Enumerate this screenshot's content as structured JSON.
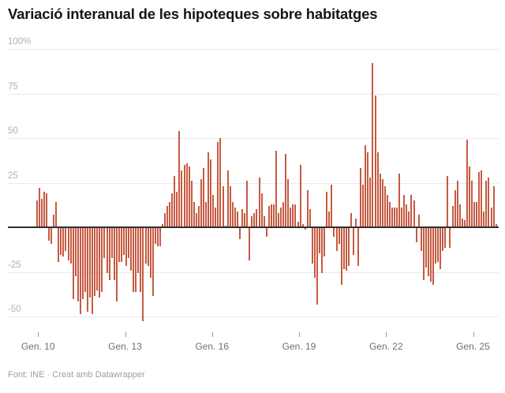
{
  "title": "Variació interanual de les hipoteques sobre habitatges",
  "footer": {
    "text": "Font: INE · Creat amb Datawrapper"
  },
  "chart_data": {
    "type": "bar",
    "title": "Variació interanual de les hipoteques sobre habitatges",
    "unit": "percent",
    "frequency": "monthly",
    "x_start_label": "Gen. 10",
    "grid": true,
    "bar_color": "#c65a41",
    "zero_line_color": "#2f2f2f",
    "grid_color": "#e9e9e9",
    "ylim": [
      -55,
      100
    ],
    "y_ticks": [
      {
        "value": 100,
        "label": "100%"
      },
      {
        "value": 75,
        "label": "75"
      },
      {
        "value": 50,
        "label": "50"
      },
      {
        "value": 25,
        "label": "25"
      },
      {
        "value": -25,
        "label": "-25"
      },
      {
        "value": -50,
        "label": "-50"
      }
    ],
    "x_ticks": [
      {
        "index": 0,
        "label": "Gen. 10"
      },
      {
        "index": 36,
        "label": "Gen. 13"
      },
      {
        "index": 72,
        "label": "Gen. 16"
      },
      {
        "index": 108,
        "label": "Gen. 19"
      },
      {
        "index": 144,
        "label": "Gen. 22"
      },
      {
        "index": 180,
        "label": "Gen. 25"
      }
    ],
    "values": [
      15,
      22,
      16,
      20,
      19,
      -7,
      -9,
      7,
      14,
      -19,
      -15,
      -16,
      -13,
      -18,
      -20,
      -40,
      -27,
      -41,
      -48,
      -40,
      -36,
      -47,
      -39,
      -48,
      -38,
      -35,
      -39,
      -36,
      -17,
      -25,
      -29,
      -17,
      -29,
      -41,
      -19,
      -19,
      -15,
      -21,
      -17,
      -24,
      -36,
      -36,
      -25,
      -36,
      -52,
      -20,
      -21,
      -28,
      -38,
      -9,
      -10,
      -10,
      2,
      8,
      12,
      14,
      19,
      29,
      20,
      54,
      32,
      35,
      36,
      34,
      26,
      14,
      8,
      12,
      27,
      33,
      14,
      42,
      38,
      18,
      11,
      48,
      50,
      23,
      1,
      32,
      23,
      14,
      11,
      9,
      -6,
      10,
      8,
      26,
      -18,
      6,
      8,
      10,
      28,
      19,
      6,
      -5,
      12,
      13,
      13,
      43,
      8,
      11,
      14,
      41,
      27,
      11,
      13,
      13,
      3,
      35,
      2,
      -1,
      21,
      10,
      -20,
      -28,
      -43,
      -14,
      -25,
      -16,
      20,
      9,
      24,
      -5,
      -13,
      -9,
      -32,
      -23,
      -24,
      -21,
      8,
      -15,
      5,
      -21,
      33,
      24,
      46,
      42,
      28,
      92,
      74,
      42,
      30,
      27,
      23,
      18,
      14,
      11,
      11,
      11,
      30,
      11,
      18,
      13,
      9,
      18,
      15,
      -8,
      7,
      -13,
      -29,
      -22,
      -27,
      -30,
      -32,
      -20,
      -19,
      -23,
      -13,
      -11,
      29,
      -11,
      12,
      21,
      26,
      13,
      5,
      4,
      49,
      34,
      26,
      14,
      14,
      31,
      32,
      9,
      26,
      28,
      11,
      23,
      2
    ]
  }
}
